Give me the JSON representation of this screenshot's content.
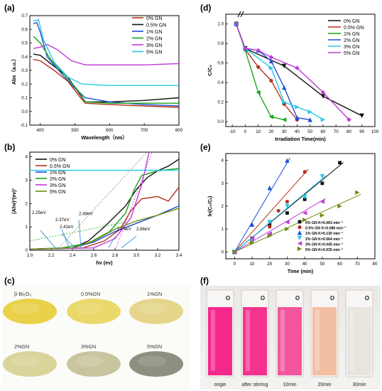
{
  "panels": {
    "a": "(a)",
    "b": "(b)",
    "c": "(c)",
    "d": "(d)",
    "e": "(e)",
    "f": "(f)"
  },
  "colors": {
    "black": "#111111",
    "brown": "#b5301c",
    "blue": "#1f4fd6",
    "green": "#18a518",
    "magenta": "#c03ad8",
    "cyan": "#27c7e8",
    "olive": "#6f8d12",
    "pink": "#f03c8e"
  },
  "chart_data": [
    {
      "id": "a",
      "type": "line",
      "xlabel": "Wavelength（nm）",
      "ylabel": "Abs（a.u.）",
      "xlim": [
        370,
        800
      ],
      "ylim": [
        -0.1,
        0.7
      ],
      "xticks": [
        "400",
        "500",
        "600",
        "700",
        "800"
      ],
      "yticks": [
        "-0.1",
        "0.0",
        "0.1",
        "0.2",
        "0.3",
        "0.4",
        "0.5",
        "0.6",
        "0.7"
      ],
      "legend_position": "top-right",
      "series": [
        {
          "name": "0% GN",
          "color": "#b5301c",
          "points": [
            [
              380,
              0.38
            ],
            [
              400,
              0.37
            ],
            [
              440,
              0.3
            ],
            [
              480,
              0.22
            ],
            [
              510,
              0.12
            ],
            [
              530,
              0.06
            ],
            [
              600,
              0.05
            ],
            [
              700,
              0.04
            ],
            [
              800,
              0.03
            ]
          ]
        },
        {
          "name": "0.5% GN",
          "color": "#111111",
          "points": [
            [
              380,
              0.42
            ],
            [
              400,
              0.41
            ],
            [
              440,
              0.33
            ],
            [
              480,
              0.25
            ],
            [
              510,
              0.14
            ],
            [
              530,
              0.07
            ],
            [
              600,
              0.07
            ],
            [
              700,
              0.08
            ],
            [
              800,
              0.1
            ]
          ]
        },
        {
          "name": "1% GN",
          "color": "#1f4fd6",
          "points": [
            [
              380,
              0.64
            ],
            [
              390,
              0.65
            ],
            [
              400,
              0.58
            ],
            [
              420,
              0.4
            ],
            [
              460,
              0.28
            ],
            [
              500,
              0.17
            ],
            [
              530,
              0.1
            ],
            [
              600,
              0.07
            ],
            [
              700,
              0.05
            ],
            [
              800,
              0.04
            ]
          ]
        },
        {
          "name": "2% GN",
          "color": "#18a518",
          "points": [
            [
              380,
              0.55
            ],
            [
              400,
              0.5
            ],
            [
              430,
              0.38
            ],
            [
              470,
              0.27
            ],
            [
              510,
              0.15
            ],
            [
              530,
              0.07
            ],
            [
              600,
              0.06
            ],
            [
              700,
              0.06
            ],
            [
              800,
              0.06
            ]
          ]
        },
        {
          "name": "3% GN",
          "color": "#c03ad8",
          "points": [
            [
              380,
              0.46
            ],
            [
              400,
              0.47
            ],
            [
              420,
              0.49
            ],
            [
              450,
              0.45
            ],
            [
              490,
              0.37
            ],
            [
              530,
              0.34
            ],
            [
              600,
              0.34
            ],
            [
              700,
              0.34
            ],
            [
              800,
              0.35
            ]
          ]
        },
        {
          "name": "5% GN",
          "color": "#27c7e8",
          "points": [
            [
              380,
              0.66
            ],
            [
              395,
              0.67
            ],
            [
              410,
              0.52
            ],
            [
              440,
              0.36
            ],
            [
              480,
              0.25
            ],
            [
              520,
              0.2
            ],
            [
              600,
              0.19
            ],
            [
              700,
              0.19
            ],
            [
              800,
              0.19
            ]
          ]
        }
      ]
    },
    {
      "id": "b",
      "type": "line",
      "xlabel": "hv (ev)",
      "ylabel": "(Ahv)²(ev)²",
      "xlim": [
        2.0,
        3.4
      ],
      "ylim": [
        0,
        4.2
      ],
      "xticks": [
        "2.0",
        "2.2",
        "2.4",
        "2.6",
        "2.8",
        "3.0",
        "3.2",
        "3.4"
      ],
      "yticks": [
        "0",
        "1",
        "2",
        "3",
        "4"
      ],
      "legend_position": "top-left",
      "annotations": [
        "2.25eV",
        "2.37eV",
        "2.48eV",
        "2.42eV",
        "2.74eV",
        "2.86eV"
      ],
      "series": [
        {
          "name": "0% GN",
          "color": "#111111",
          "points": [
            [
              2.0,
              0.05
            ],
            [
              2.4,
              0.1
            ],
            [
              2.55,
              0.4
            ],
            [
              2.7,
              1.0
            ],
            [
              2.9,
              1.9
            ],
            [
              3.0,
              2.6
            ],
            [
              3.1,
              3.1
            ],
            [
              3.2,
              3.4
            ],
            [
              3.3,
              3.6
            ],
            [
              3.4,
              3.9
            ]
          ]
        },
        {
          "name": "0.5% GN",
          "color": "#b5301c",
          "points": [
            [
              2.0,
              0.05
            ],
            [
              2.5,
              0.1
            ],
            [
              2.7,
              0.4
            ],
            [
              2.85,
              0.9
            ],
            [
              2.95,
              1.7
            ],
            [
              3.05,
              2.2
            ],
            [
              3.2,
              2.3
            ],
            [
              3.3,
              2.1
            ],
            [
              3.35,
              2.4
            ],
            [
              3.4,
              2.7
            ]
          ]
        },
        {
          "name": "1% GN",
          "color": "#1f4fd6",
          "points": [
            [
              2.0,
              0.05
            ],
            [
              2.4,
              0.1
            ],
            [
              2.6,
              0.35
            ],
            [
              2.8,
              0.8
            ],
            [
              3.0,
              1.15
            ],
            [
              3.2,
              1.5
            ],
            [
              3.4,
              1.9
            ]
          ]
        },
        {
          "name": "2% GN",
          "color": "#18a518",
          "points": [
            [
              2.0,
              0.05
            ],
            [
              2.3,
              0.1
            ],
            [
              2.55,
              0.3
            ],
            [
              2.75,
              0.8
            ],
            [
              2.9,
              1.6
            ],
            [
              2.98,
              2.6
            ],
            [
              3.05,
              3.2
            ],
            [
              3.2,
              3.4
            ],
            [
              3.4,
              3.5
            ]
          ]
        },
        {
          "name": "3% GN",
          "color": "#c03ad8",
          "points": [
            [
              2.0,
              0.05
            ],
            [
              2.6,
              0.1
            ],
            [
              2.8,
              0.5
            ],
            [
              2.95,
              1.4
            ],
            [
              3.05,
              2.8
            ],
            [
              3.12,
              4.2
            ]
          ]
        },
        {
          "name": "5% GN",
          "color": "#6f8d12",
          "points": [
            [
              2.0,
              0.05
            ],
            [
              2.4,
              0.1
            ],
            [
              2.6,
              0.4
            ],
            [
              2.8,
              0.9
            ],
            [
              3.0,
              1.25
            ],
            [
              3.2,
              1.5
            ],
            [
              3.4,
              1.8
            ]
          ]
        },
        {
          "name": "",
          "color": "#27c7e8",
          "points": [
            [
              2.0,
              3.42
            ],
            [
              3.4,
              3.42
            ]
          ]
        }
      ]
    },
    {
      "id": "d",
      "type": "line",
      "xlabel": "Irradiation Time(min)",
      "ylabel": "C/C₀",
      "xlim": [
        -15,
        100
      ],
      "ylim": [
        -0.05,
        1.1
      ],
      "xticks": [
        "-10",
        "0",
        "10",
        "20",
        "30",
        "40",
        "50",
        "60",
        "70",
        "80",
        "90",
        "100"
      ],
      "yticks": [
        "0.0",
        "0.2",
        "0.4",
        "0.6",
        "0.8",
        "1.0"
      ],
      "legend_position": "top-right",
      "series": [
        {
          "name": "0% GN",
          "color": "#111111",
          "marker": "tri-down",
          "points": [
            [
              -7,
              1.0
            ],
            [
              0,
              0.75
            ],
            [
              30,
              0.57
            ],
            [
              60,
              0.26
            ],
            [
              90,
              0.06
            ]
          ]
        },
        {
          "name": "0.5% GN",
          "color": "#b5301c",
          "marker": "circle",
          "points": [
            [
              -7,
              1.0
            ],
            [
              0,
              0.74
            ],
            [
              10,
              0.56
            ],
            [
              20,
              0.42
            ],
            [
              30,
              0.18
            ],
            [
              40,
              0.02
            ]
          ]
        },
        {
          "name": "1% GN",
          "color": "#18a518",
          "marker": "tri-left",
          "points": [
            [
              -7,
              1.0
            ],
            [
              0,
              0.73
            ],
            [
              10,
              0.3
            ],
            [
              20,
              0.05
            ],
            [
              30,
              0.02
            ]
          ]
        },
        {
          "name": "2% GN",
          "color": "#1f4fd6",
          "marker": "tri-up",
          "points": [
            [
              -7,
              1.0
            ],
            [
              0,
              0.75
            ],
            [
              10,
              0.73
            ],
            [
              20,
              0.62
            ],
            [
              30,
              0.35
            ],
            [
              40,
              0.04
            ],
            [
              50,
              0.02
            ]
          ]
        },
        {
          "name": "3% GN",
          "color": "#27c7e8",
          "marker": "tri-right",
          "points": [
            [
              -7,
              1.0
            ],
            [
              0,
              0.75
            ],
            [
              20,
              0.55
            ],
            [
              30,
              0.2
            ],
            [
              40,
              0.15
            ],
            [
              50,
              0.1
            ],
            [
              60,
              0.02
            ]
          ]
        },
        {
          "name": "5% GN",
          "color": "#c03ad8",
          "marker": "diamond",
          "points": [
            [
              -7,
              1.0
            ],
            [
              0,
              0.75
            ],
            [
              10,
              0.73
            ],
            [
              20,
              0.66
            ],
            [
              40,
              0.55
            ],
            [
              60,
              0.3
            ],
            [
              80,
              0.02
            ]
          ]
        }
      ]
    },
    {
      "id": "e",
      "type": "scatter",
      "xlabel": "Time (min)",
      "ylabel": "ln(C₀/Cₜ)",
      "xlim": [
        -5,
        80
      ],
      "ylim": [
        -0.3,
        4.3
      ],
      "xticks": [
        "0",
        "10",
        "20",
        "30",
        "40",
        "50",
        "60",
        "70",
        "80"
      ],
      "yticks": [
        "0",
        "1",
        "2",
        "3",
        "4"
      ],
      "legend_position": "bottom-right",
      "series": [
        {
          "name": "0% GN K=0.063 min⁻¹",
          "color": "#111111",
          "marker": "square",
          "slope": 0.063,
          "points": [
            [
              0,
              0.0
            ],
            [
              10,
              0.6
            ],
            [
              20,
              1.2
            ],
            [
              30,
              1.7
            ],
            [
              40,
              2.3
            ],
            [
              50,
              3.0
            ],
            [
              60,
              3.9
            ]
          ]
        },
        {
          "name": "0.5% GN K=0.086 min⁻¹",
          "color": "#b5301c",
          "marker": "circle",
          "slope": 0.086,
          "points": [
            [
              0,
              0.0
            ],
            [
              10,
              0.5
            ],
            [
              20,
              1.1
            ],
            [
              25,
              1.8
            ],
            [
              30,
              2.2
            ],
            [
              40,
              3.5
            ]
          ]
        },
        {
          "name": "1% GN K=0.130 min⁻¹",
          "color": "#1f4fd6",
          "marker": "tri-up",
          "slope": 0.13,
          "points": [
            [
              0,
              0.0
            ],
            [
              10,
              1.2
            ],
            [
              20,
              2.8
            ],
            [
              30,
              4.0
            ]
          ]
        },
        {
          "name": "2% GN K=0.064 min⁻¹",
          "color": "#27c7e8",
          "marker": "tri-down",
          "slope": 0.064,
          "points": [
            [
              0,
              0.0
            ],
            [
              10,
              0.5
            ],
            [
              20,
              1.3
            ],
            [
              30,
              2.0
            ],
            [
              40,
              2.4
            ],
            [
              50,
              3.3
            ]
          ]
        },
        {
          "name": "3% GN K=0.045 min⁻¹",
          "color": "#c03ad8",
          "marker": "tri-left",
          "slope": 0.045,
          "points": [
            [
              0,
              0.0
            ],
            [
              10,
              0.6
            ],
            [
              20,
              0.8
            ],
            [
              30,
              1.3
            ],
            [
              40,
              1.7
            ],
            [
              50,
              2.2
            ]
          ]
        },
        {
          "name": "5% GN K=0.035 min⁻¹",
          "color": "#6f8d12",
          "marker": "tri-right",
          "slope": 0.035,
          "points": [
            [
              0,
              0.0
            ],
            [
              10,
              0.4
            ],
            [
              20,
              0.7
            ],
            [
              30,
              1.0
            ],
            [
              40,
              1.4
            ],
            [
              50,
              1.6
            ],
            [
              60,
              2.0
            ],
            [
              70,
              2.6
            ]
          ]
        }
      ]
    }
  ],
  "powders": [
    {
      "label": "β-Bi₂O₃",
      "color": "#e9d24a"
    },
    {
      "label": "0.5%GN",
      "color": "#ead86a"
    },
    {
      "label": "1%GN",
      "color": "#e5d58a"
    },
    {
      "label": "2%GN",
      "color": "#d9d49a"
    },
    {
      "label": "3%GN",
      "color": "#c8c59e"
    },
    {
      "label": "5%GN",
      "color": "#8e8f80"
    }
  ],
  "vials": [
    {
      "label": "origin",
      "color": "#f5288c"
    },
    {
      "label": "after stirring",
      "color": "#f5328f"
    },
    {
      "label": "10min",
      "color": "#f4569d"
    },
    {
      "label": "20min",
      "color": "#f2bfa3"
    },
    {
      "label": "30min",
      "color": "#e7e5de"
    }
  ]
}
